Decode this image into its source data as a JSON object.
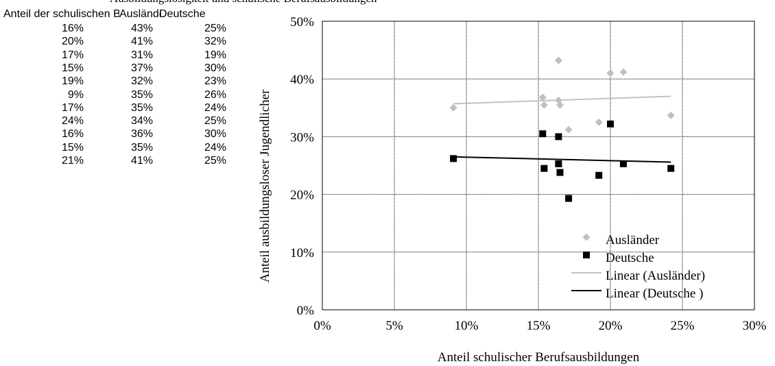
{
  "title": "Ausbildungslosigkeit und schulische Berufsausbildungen",
  "table": {
    "headers": [
      "Anteil der schulischen Berufsausbildungen",
      "Ausländer",
      "Deutsche"
    ],
    "rows": [
      [
        "16%",
        "43%",
        "25%"
      ],
      [
        "20%",
        "41%",
        "32%"
      ],
      [
        "17%",
        "31%",
        "19%"
      ],
      [
        "15%",
        "37%",
        "30%"
      ],
      [
        "19%",
        "32%",
        "23%"
      ],
      [
        "9%",
        "35%",
        "26%"
      ],
      [
        "17%",
        "35%",
        "24%"
      ],
      [
        "24%",
        "34%",
        "25%"
      ],
      [
        "16%",
        "36%",
        "30%"
      ],
      [
        "15%",
        "35%",
        "24%"
      ],
      [
        "21%",
        "41%",
        "25%"
      ]
    ]
  },
  "chart_data": {
    "type": "scatter",
    "xlabel": "Anteil schulischer Berufsausbildungen",
    "ylabel": "Anteil ausbildungsloser Jugendlicher",
    "xlim": [
      0,
      0.3
    ],
    "ylim": [
      0,
      0.5
    ],
    "x_ticks": [
      "0%",
      "5%",
      "10%",
      "15%",
      "20%",
      "25%",
      "30%"
    ],
    "y_ticks": [
      "0%",
      "10%",
      "20%",
      "30%",
      "40%",
      "50%"
    ],
    "grid": true,
    "legend_position": "bottom-right",
    "series": [
      {
        "name": "Ausländer",
        "marker": "diamond",
        "color": "#c0c0c0",
        "points": [
          [
            0.164,
            0.432
          ],
          [
            0.2,
            0.41
          ],
          [
            0.171,
            0.312
          ],
          [
            0.153,
            0.368
          ],
          [
            0.192,
            0.325
          ],
          [
            0.091,
            0.35
          ],
          [
            0.165,
            0.355
          ],
          [
            0.242,
            0.337
          ],
          [
            0.164,
            0.363
          ],
          [
            0.154,
            0.355
          ],
          [
            0.209,
            0.412
          ]
        ]
      },
      {
        "name": "Deutsche",
        "marker": "square",
        "color": "#000000",
        "points": [
          [
            0.164,
            0.253
          ],
          [
            0.2,
            0.322
          ],
          [
            0.171,
            0.193
          ],
          [
            0.153,
            0.305
          ],
          [
            0.192,
            0.233
          ],
          [
            0.091,
            0.262
          ],
          [
            0.165,
            0.238
          ],
          [
            0.242,
            0.245
          ],
          [
            0.164,
            0.3
          ],
          [
            0.154,
            0.245
          ],
          [
            0.209,
            0.253
          ]
        ]
      }
    ],
    "trendlines": [
      {
        "name": "Linear (Ausländer)",
        "color": "#c0c0c0",
        "from": [
          0.091,
          0.357
        ],
        "to": [
          0.242,
          0.37
        ]
      },
      {
        "name": "Linear (Deutsche )",
        "color": "#000000",
        "from": [
          0.091,
          0.265
        ],
        "to": [
          0.242,
          0.256
        ]
      }
    ]
  }
}
